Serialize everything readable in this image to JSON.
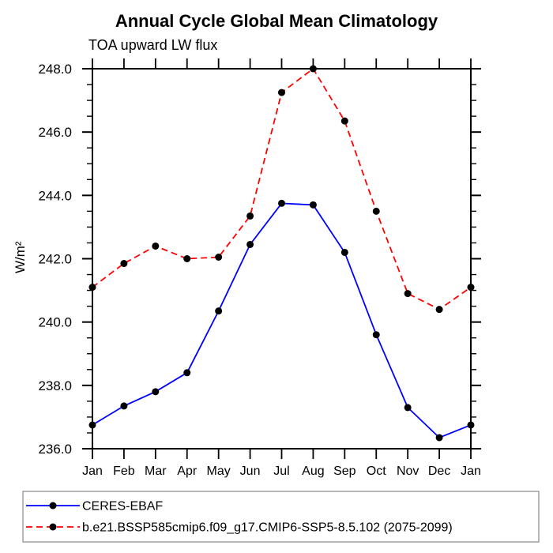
{
  "page": {
    "background": "#ffffff"
  },
  "chart_data": {
    "type": "line",
    "title": "Annual Cycle Global Mean Climatology",
    "subtitle": "TOA upward LW flux",
    "ylabel": "W/m²",
    "x_tick_labels": [
      "Jan",
      "Feb",
      "Mar",
      "Apr",
      "May",
      "Jun",
      "Jul",
      "Aug",
      "Sep",
      "Oct",
      "Nov",
      "Dec",
      "Jan"
    ],
    "ylim": [
      236.0,
      248.0
    ],
    "y_major_step": 2.0,
    "y_minor_step": 0.5,
    "y_tick_decimals": 1,
    "grid": false,
    "legend_position": "bottom",
    "axis_color": "#000000",
    "legend_border_color": "#888888",
    "marker_color": "#000000",
    "series": [
      {
        "name": "CERES-EBAF",
        "color": "#0000ff",
        "line_style": "solid",
        "marker": "filled-circle",
        "values": [
          236.75,
          237.35,
          237.8,
          238.4,
          240.35,
          242.45,
          243.75,
          243.7,
          242.2,
          239.6,
          237.3,
          236.35,
          236.75
        ]
      },
      {
        "name": "b.e21.BSSP585cmip6.f09_g17.CMIP6-SSP5-8.5.102 (2075-2099)",
        "color": "#ff0000",
        "line_style": "dashed",
        "marker": "filled-circle",
        "values": [
          241.1,
          241.85,
          242.4,
          242.0,
          242.05,
          243.35,
          247.25,
          248.0,
          246.35,
          243.5,
          240.9,
          240.4,
          241.1
        ]
      }
    ]
  }
}
